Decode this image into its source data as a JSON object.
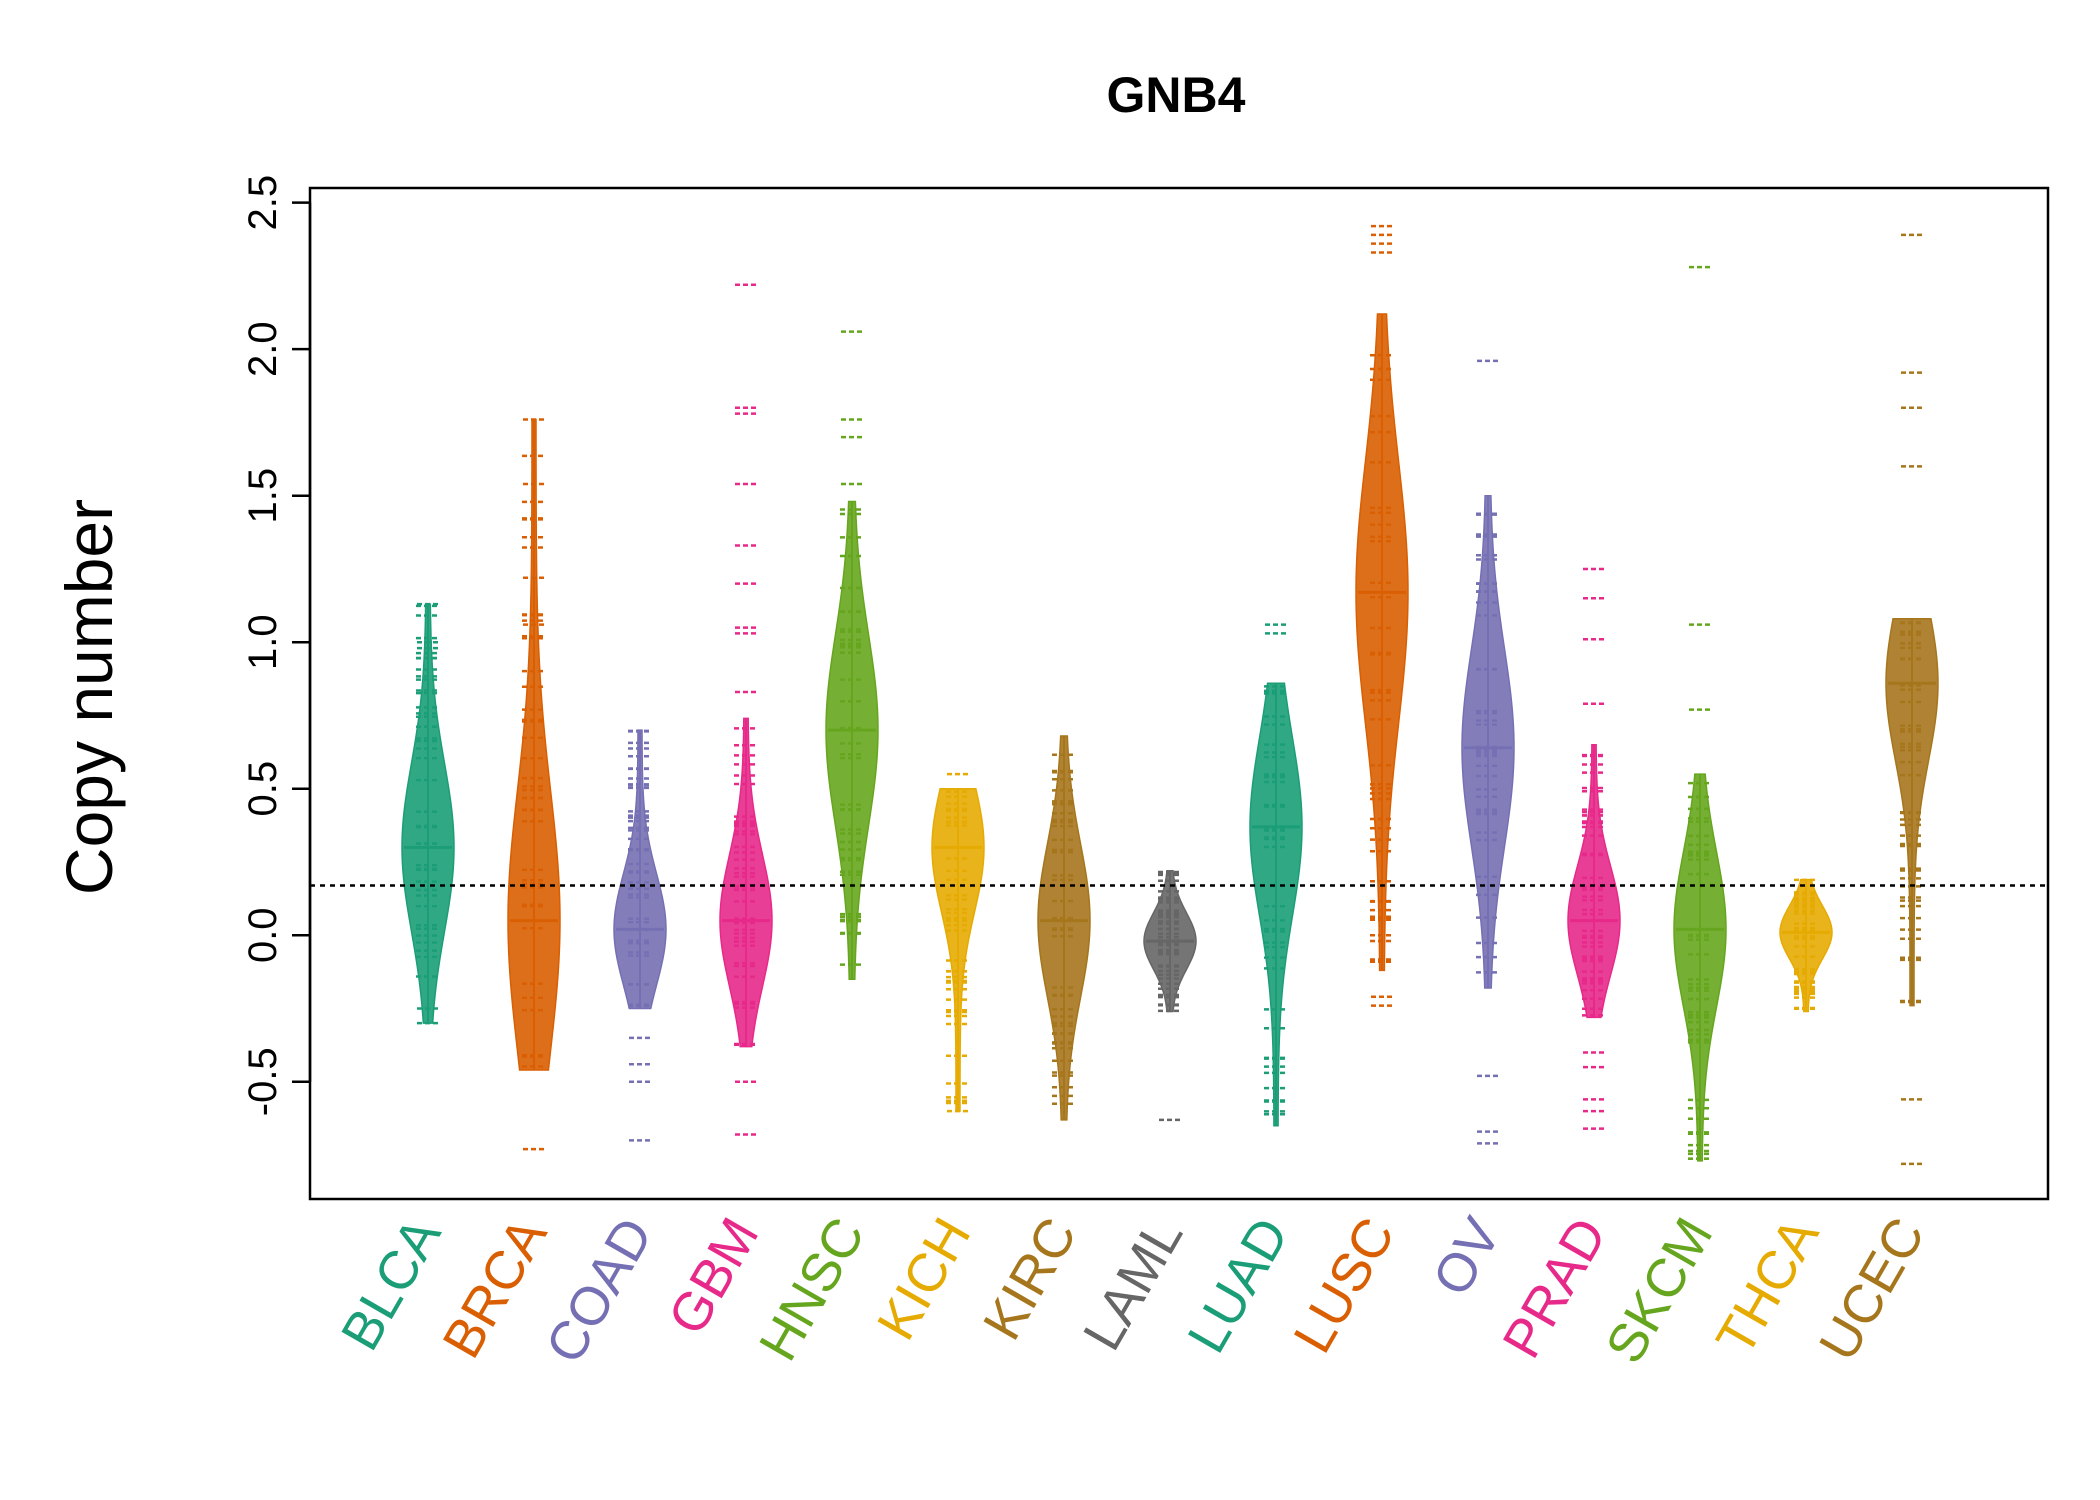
{
  "chart_data": {
    "type": "beanplot",
    "title": "GNB4",
    "ylabel": "Copy number",
    "xlabel": "",
    "ylim": [
      -0.9,
      2.55
    ],
    "yticks": [
      -0.5,
      0.0,
      0.5,
      1.0,
      1.5,
      2.0,
      2.5
    ],
    "ytick_labels": [
      "-0.5",
      "0.0",
      "0.5",
      "1.0",
      "1.5",
      "2.0",
      "2.5"
    ],
    "reference_line": 0.17,
    "categories": [
      "BLCA",
      "BRCA",
      "COAD",
      "GBM",
      "HNSC",
      "KICH",
      "KIRC",
      "LAML",
      "LUAD",
      "LUSC",
      "OV",
      "PRAD",
      "SKCM",
      "THCA",
      "UCEC"
    ],
    "colors": [
      "#1b9e77",
      "#d95f02",
      "#7570b3",
      "#e7298a",
      "#66a61e",
      "#e6ab02",
      "#a6761d",
      "#666666",
      "#1b9e77",
      "#d95f02",
      "#7570b3",
      "#e7298a",
      "#66a61e",
      "#e6ab02",
      "#a6761d"
    ],
    "series": [
      {
        "min": -0.3,
        "max": 1.13,
        "median": 0.3,
        "outliers": [
          1.13,
          1.0,
          0.98,
          -0.25,
          -0.3
        ]
      },
      {
        "min": -0.46,
        "max": 1.76,
        "median": 0.05,
        "outliers": [
          1.76,
          1.54,
          1.22,
          1.06,
          -0.73
        ]
      },
      {
        "min": -0.25,
        "max": 0.7,
        "median": 0.02,
        "outliers": [
          -0.35,
          -0.44,
          -0.5,
          -0.7
        ]
      },
      {
        "min": -0.38,
        "max": 0.74,
        "median": 0.05,
        "outliers": [
          2.22,
          1.8,
          1.78,
          1.54,
          1.33,
          1.2,
          1.05,
          1.03,
          0.83,
          -0.5,
          -0.68
        ]
      },
      {
        "min": -0.15,
        "max": 1.48,
        "median": 0.7,
        "outliers": [
          2.06,
          1.76,
          1.7,
          1.54
        ]
      },
      {
        "min": -0.6,
        "max": 0.5,
        "median": 0.3,
        "outliers": [
          0.55,
          -0.6
        ]
      },
      {
        "min": -0.63,
        "max": 0.68,
        "median": 0.05,
        "outliers": []
      },
      {
        "min": -0.26,
        "max": 0.22,
        "median": -0.02,
        "outliers": [
          -0.63
        ]
      },
      {
        "min": -0.65,
        "max": 0.86,
        "median": 0.37,
        "outliers": [
          1.06,
          1.03
        ]
      },
      {
        "min": -0.12,
        "max": 2.12,
        "median": 1.17,
        "outliers": [
          2.42,
          2.39,
          2.36,
          2.33,
          -0.21,
          -0.24
        ]
      },
      {
        "min": -0.18,
        "max": 1.5,
        "median": 0.64,
        "outliers": [
          1.96,
          -0.48,
          -0.67,
          -0.71
        ]
      },
      {
        "min": -0.28,
        "max": 0.65,
        "median": 0.05,
        "outliers": [
          1.25,
          1.15,
          1.01,
          0.79,
          -0.4,
          -0.45,
          -0.56,
          -0.6,
          -0.66
        ]
      },
      {
        "min": -0.77,
        "max": 0.55,
        "median": 0.02,
        "outliers": [
          2.28,
          1.06,
          0.77
        ]
      },
      {
        "min": -0.26,
        "max": 0.19,
        "median": 0.01,
        "outliers": []
      },
      {
        "min": -0.24,
        "max": 1.08,
        "median": 0.86,
        "outliers": [
          2.39,
          1.92,
          1.8,
          1.6,
          -0.56,
          -0.78
        ]
      }
    ]
  }
}
